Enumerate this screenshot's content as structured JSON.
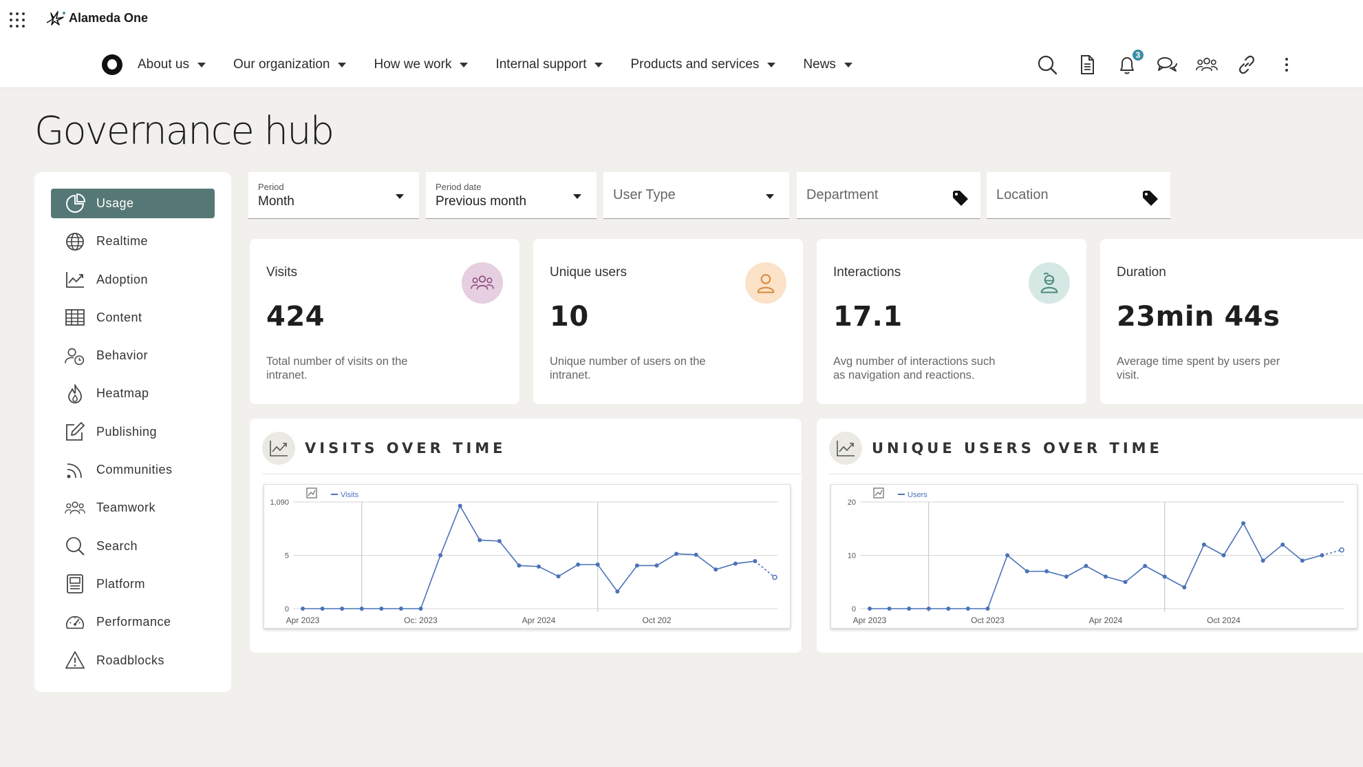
{
  "brand": {
    "name": "Alameda One"
  },
  "nav": {
    "items": [
      {
        "label": "About us"
      },
      {
        "label": "Our organization"
      },
      {
        "label": "How we work"
      },
      {
        "label": "Internal support"
      },
      {
        "label": "Products and services"
      },
      {
        "label": "News"
      }
    ],
    "icons": [
      "search-icon",
      "document-icon",
      "bell-icon",
      "chat-icon",
      "people-icon",
      "link-icon",
      "more-icon"
    ],
    "notification_count": "3"
  },
  "page": {
    "title": "Governance hub"
  },
  "sidebar": {
    "items": [
      {
        "label": "Usage",
        "icon": "pie-chart-icon",
        "active": true
      },
      {
        "label": "Realtime",
        "icon": "globe-icon"
      },
      {
        "label": "Adoption",
        "icon": "trend-chart-icon"
      },
      {
        "label": "Content",
        "icon": "table-icon"
      },
      {
        "label": "Behavior",
        "icon": "user-clock-icon"
      },
      {
        "label": "Heatmap",
        "icon": "flame-icon"
      },
      {
        "label": "Publishing",
        "icon": "edit-icon"
      },
      {
        "label": "Communities",
        "icon": "rss-icon"
      },
      {
        "label": "Teamwork",
        "icon": "team-icon"
      },
      {
        "label": "Search",
        "icon": "search-icon"
      },
      {
        "label": "Platform",
        "icon": "server-icon"
      },
      {
        "label": "Performance",
        "icon": "gauge-icon"
      },
      {
        "label": "Roadblocks",
        "icon": "warning-icon"
      }
    ]
  },
  "filters": {
    "period": {
      "label": "Period",
      "value": "Month"
    },
    "period_date": {
      "label": "Period date",
      "value": "Previous month"
    },
    "user_type": {
      "placeholder": "User Type"
    },
    "department": {
      "placeholder": "Department"
    },
    "location": {
      "placeholder": "Location"
    }
  },
  "stats": [
    {
      "title": "Visits",
      "value": "424",
      "desc": "Total number of visits on the intranet.",
      "icon": "people-icon",
      "color": "#e6cfe0"
    },
    {
      "title": "Unique users",
      "value": "10",
      "desc": "Unique number of users on the intranet.",
      "icon": "user-icon",
      "color": "#fbe2c8"
    },
    {
      "title": "Interactions",
      "value": "17.1",
      "desc": "Avg number of interactions such as navigation and reactions.",
      "icon": "user-interact-icon",
      "color": "#d6e8e3"
    },
    {
      "title": "Duration",
      "value": "23min 44s",
      "desc": "Average time spent by users per visit.",
      "icon": "",
      "color": ""
    }
  ],
  "colors": {
    "accent": "#557876",
    "series": "#4a72b8",
    "badge": "#3b8ea5"
  },
  "chart_data": [
    {
      "type": "line",
      "title": "VISITS OVER TIME",
      "x_ticks": [
        "Apr 2023",
        "Oc: 2023",
        "Apr 2024",
        "Oct 202"
      ],
      "y_ticks": [
        "0",
        "5",
        "1,090"
      ],
      "ylim": [
        0,
        1090
      ],
      "series": [
        {
          "name": "Visits",
          "values": [
            0,
            0,
            0,
            0,
            0,
            0,
            0,
            545,
            1050,
            700,
            690,
            440,
            430,
            330,
            450,
            450,
            175,
            440,
            440,
            560,
            550,
            400,
            460,
            485,
            320
          ],
          "last_projected": true
        }
      ]
    },
    {
      "type": "line",
      "title": "UNIQUE USERS OVER TIME",
      "x_ticks": [
        "Apr 2023",
        "Oct 2023",
        "Apr 2024",
        "Oct 2024"
      ],
      "y_ticks": [
        "0",
        "10",
        "20"
      ],
      "ylim": [
        0,
        20
      ],
      "series": [
        {
          "name": "Users",
          "values": [
            0,
            0,
            0,
            0,
            0,
            0,
            0,
            10,
            7,
            7,
            6,
            8,
            6,
            5,
            8,
            6,
            4,
            12,
            10,
            16,
            9,
            12,
            9,
            10,
            11
          ],
          "last_projected": true
        }
      ]
    }
  ]
}
